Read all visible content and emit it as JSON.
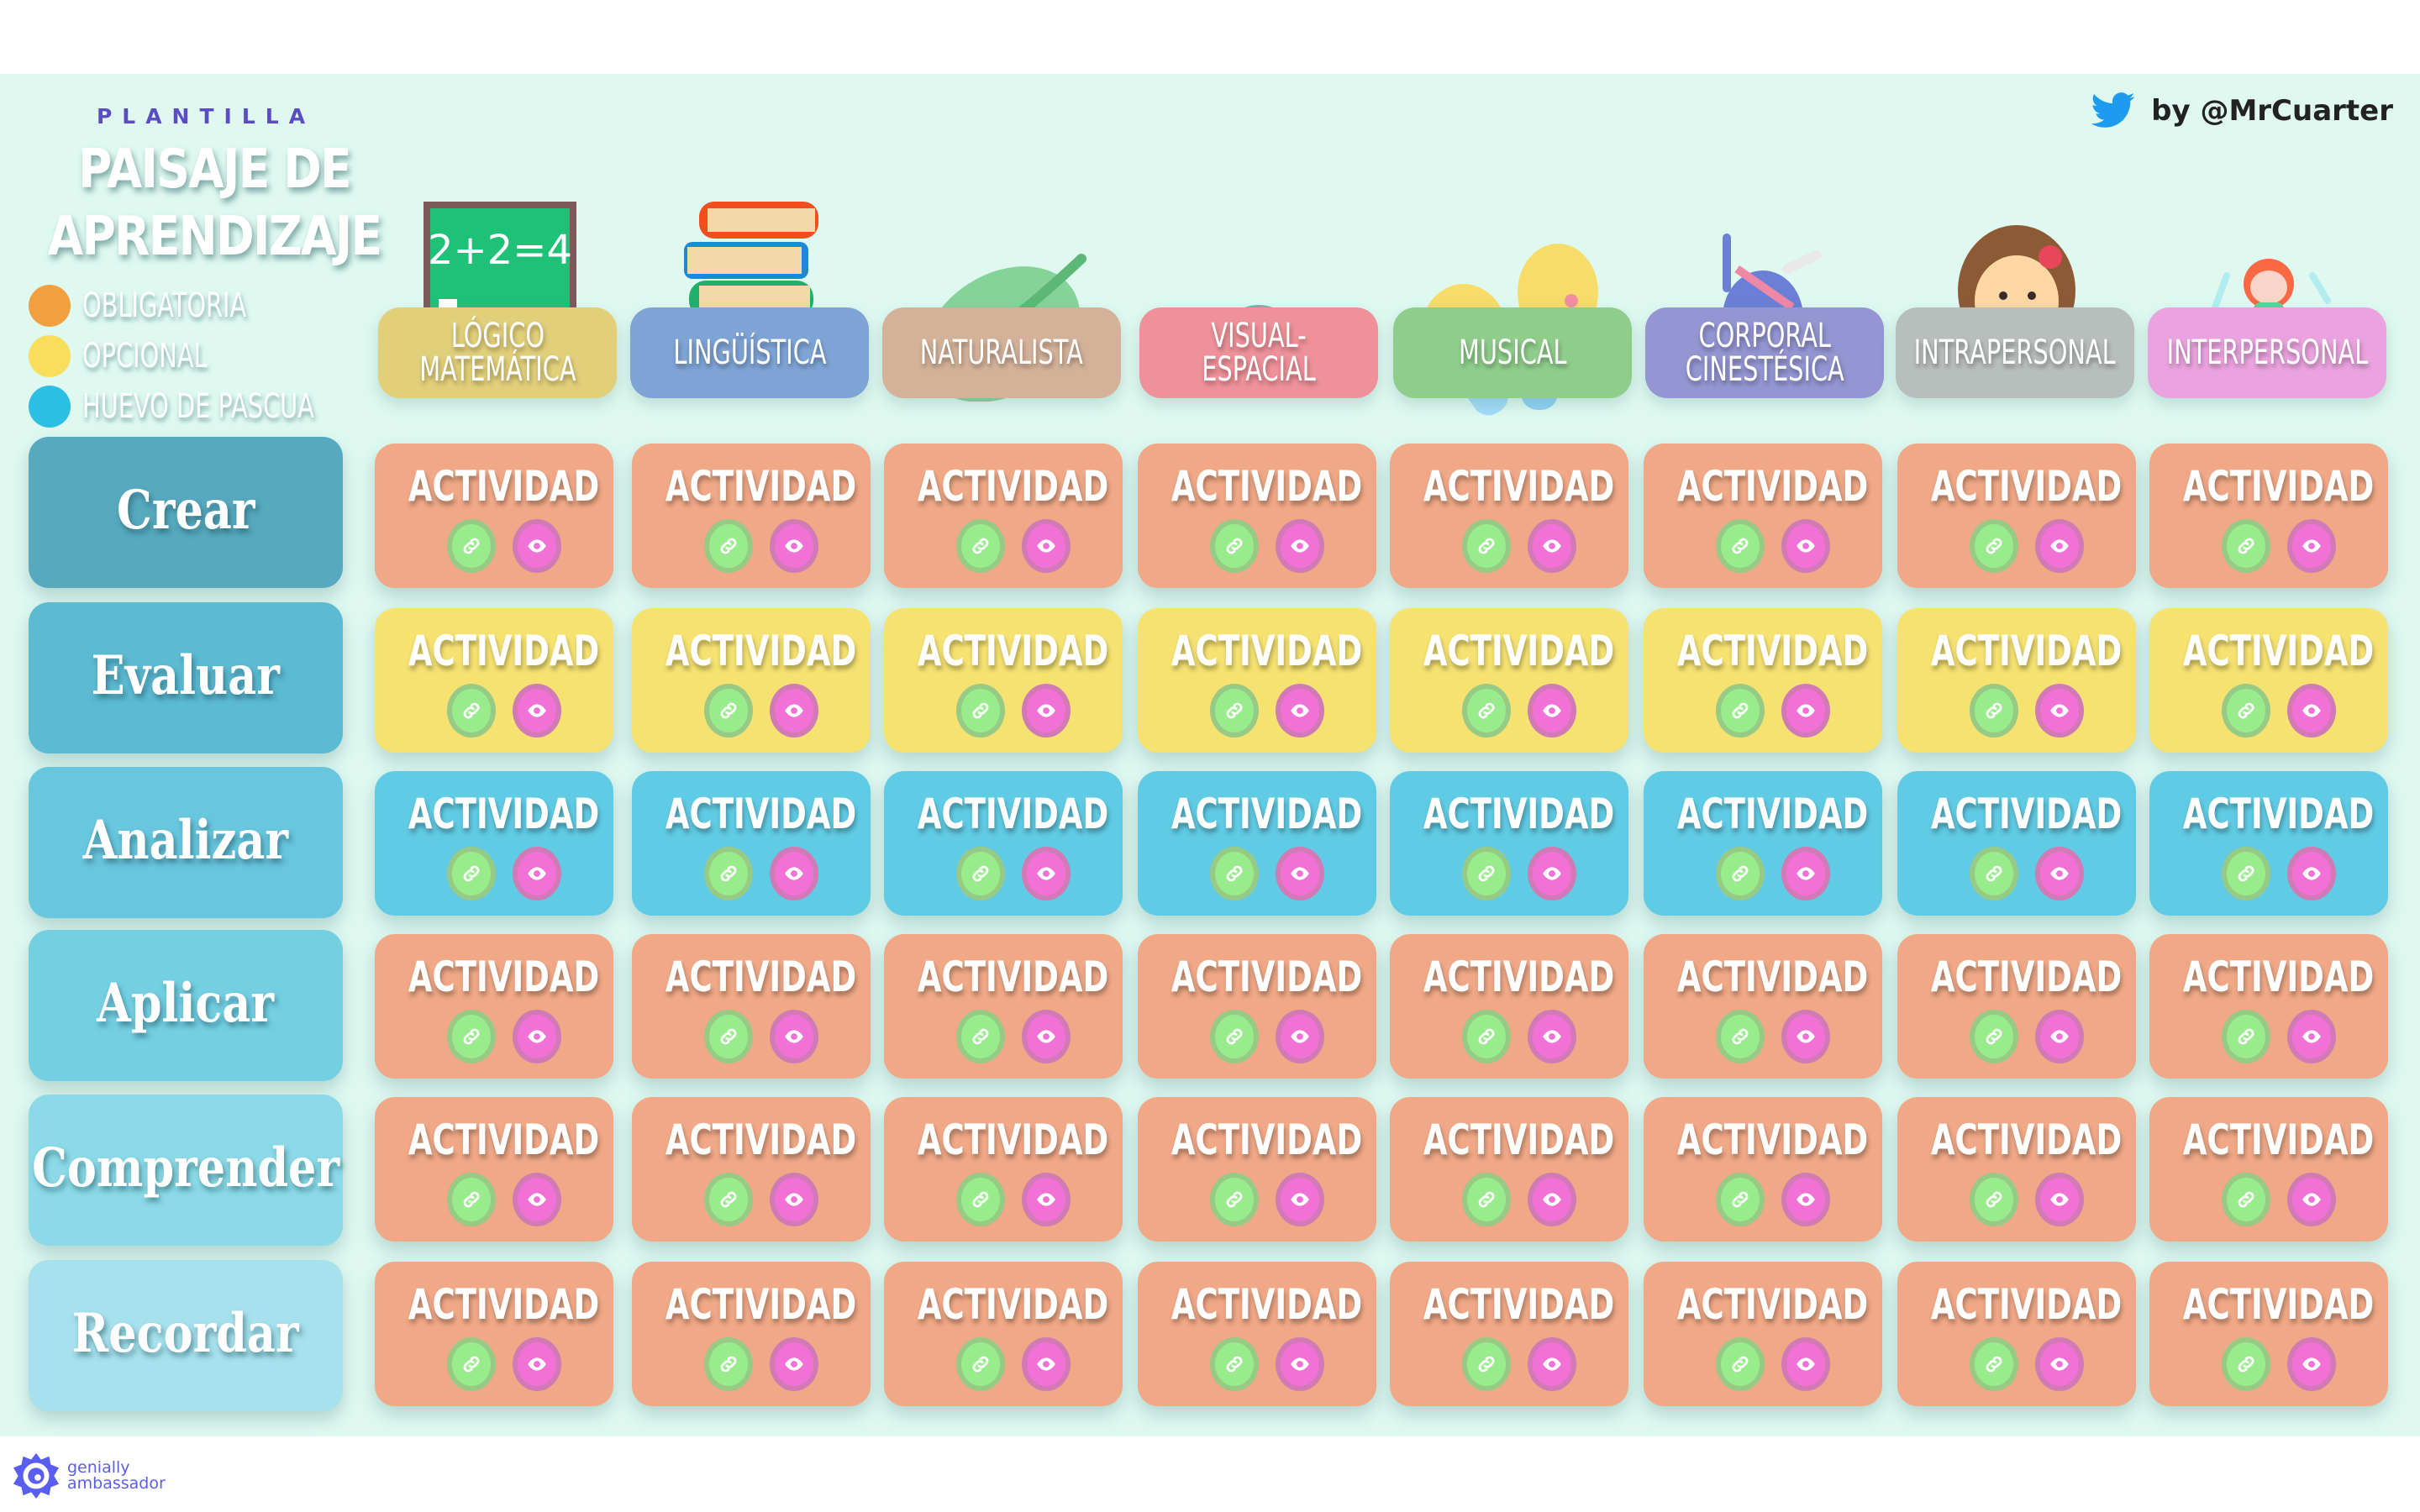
{
  "header": {
    "kicker": "PLANTILLA",
    "title_line1": "PAISAJE DE",
    "title_line2": "APRENDIZAJE",
    "author": "by @MrCuarter",
    "author_icon": "twitter-bird-icon"
  },
  "legend": [
    {
      "label": "OBLIGATORIA",
      "color": "#f0a040"
    },
    {
      "label": "OPCIONAL",
      "color": "#f9de5c"
    },
    {
      "label": "HUEVO DE PASCUA",
      "color": "#2bbfe4"
    }
  ],
  "columns": [
    {
      "label": "LÓGICO\nMATEMÁTICA",
      "color": "#e2cf7a",
      "icon": "chalkboard-icon"
    },
    {
      "label": "LINGÜÍSTICA",
      "color": "#7ea4d6",
      "icon": "books-icon"
    },
    {
      "label": "NATURALISTA",
      "color": "#d4b29a",
      "icon": "leaf-icon"
    },
    {
      "label": "VISUAL-ESPACIAL",
      "color": "#ef9199",
      "icon": "eye-icon"
    },
    {
      "label": "MUSICAL",
      "color": "#8fce8a",
      "icon": "maracas-icon"
    },
    {
      "label": "CORPORAL\nCINESTÉSICA",
      "color": "#9495d2",
      "icon": "breakdancer-icon"
    },
    {
      "label": "INTRAPERSONAL",
      "color": "#b8bebb",
      "icon": "girl-icon"
    },
    {
      "label": "INTERPERSONAL",
      "color": "#eba3df",
      "icon": "people-cycle-icon"
    }
  ],
  "rows": [
    {
      "label": "Crear",
      "label_color": "#57a9bf",
      "card_color": "#f0a886"
    },
    {
      "label": "Evaluar",
      "label_color": "#5cbad3",
      "card_color": "#f6e271"
    },
    {
      "label": "Analizar",
      "label_color": "#68c6de",
      "card_color": "#60cbe4"
    },
    {
      "label": "Aplicar",
      "label_color": "#74cfe3",
      "card_color": "#f0a886"
    },
    {
      "label": "Comprender",
      "label_color": "#8cdae8",
      "card_color": "#f0a886"
    },
    {
      "label": "Recordar",
      "label_color": "#a6e1ed",
      "card_color": "#f0a886"
    }
  ],
  "card": {
    "label": "ACTIVIDAD",
    "link_icon": "link-icon",
    "view_icon": "eye-icon",
    "link_color": "#98ec8c",
    "view_color": "#f271d6"
  },
  "footer": {
    "line1": "genially",
    "line2": "ambassador",
    "icon": "genially-logo-icon"
  }
}
